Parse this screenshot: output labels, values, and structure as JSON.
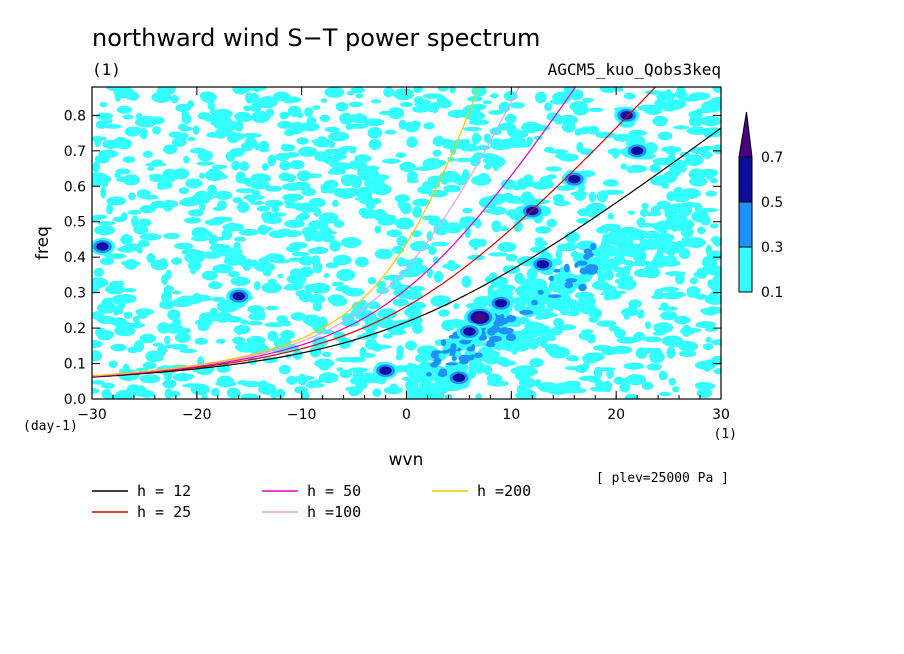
{
  "chart_data": {
    "type": "heatmap",
    "title": "northward wind S−T power spectrum",
    "units_label": "(1)",
    "experiment": "AGCM5_kuo_Qobs3keq",
    "xlabel": "wvn",
    "ylabel": "freq",
    "x_unit": "(1)",
    "y_unit": "(day-1)",
    "xlim": [
      -30,
      30
    ],
    "ylim": [
      0,
      0.88
    ],
    "x_ticks": [
      -30,
      -20,
      -10,
      0,
      10,
      20,
      30
    ],
    "x_tick_labels": [
      "−30",
      "−20",
      "−10",
      "0",
      "10",
      "20",
      "30"
    ],
    "y_ticks": [
      0,
      0.1,
      0.2,
      0.3,
      0.4,
      0.5,
      0.6,
      0.7,
      0.8
    ],
    "y_tick_labels": [
      "0.0",
      "0.1",
      "0.2",
      "0.3",
      "0.4",
      "0.5",
      "0.6",
      "0.7",
      "0.8"
    ],
    "annotation": "[ plev=25000 Pa ]",
    "colorbar": {
      "levels": [
        0.1,
        0.3,
        0.5,
        0.7
      ],
      "level_labels": [
        "0.1",
        "0.3",
        "0.5",
        "0.7"
      ],
      "colors": [
        "#33ffff",
        "#1e90ff",
        "#0d0d9c",
        "#4b0082"
      ]
    },
    "dispersion_curves": [
      {
        "label": "h = 12",
        "h": 12,
        "color": "#000000"
      },
      {
        "label": "h = 25",
        "h": 25,
        "color": "#e00000"
      },
      {
        "label": "h = 50",
        "h": 50,
        "color": "#e600b4"
      },
      {
        "label": "h =100",
        "h": 100,
        "color": "#e6a0e6"
      },
      {
        "label": "h =200",
        "h": 200,
        "color": "#f0c800"
      }
    ],
    "high_power_regions": [
      {
        "wvn": 7,
        "freq": 0.23,
        "level": 0.7
      },
      {
        "wvn": 6,
        "freq": 0.19,
        "level": 0.5
      },
      {
        "wvn": 5,
        "freq": 0.06,
        "level": 0.5
      },
      {
        "wvn": 13,
        "freq": 0.38,
        "level": 0.5
      },
      {
        "wvn": 12,
        "freq": 0.53,
        "level": 0.5
      },
      {
        "wvn": 21,
        "freq": 0.8,
        "level": 0.5
      },
      {
        "wvn": 22,
        "freq": 0.7,
        "level": 0.5
      },
      {
        "wvn": -29,
        "freq": 0.43,
        "level": 0.5
      },
      {
        "wvn": -16,
        "freq": 0.29,
        "level": 0.5
      },
      {
        "wvn": 9,
        "freq": 0.27,
        "level": 0.5
      },
      {
        "wvn": 16,
        "freq": 0.62,
        "level": 0.5
      },
      {
        "wvn": -2,
        "freq": 0.08,
        "level": 0.5
      }
    ]
  }
}
